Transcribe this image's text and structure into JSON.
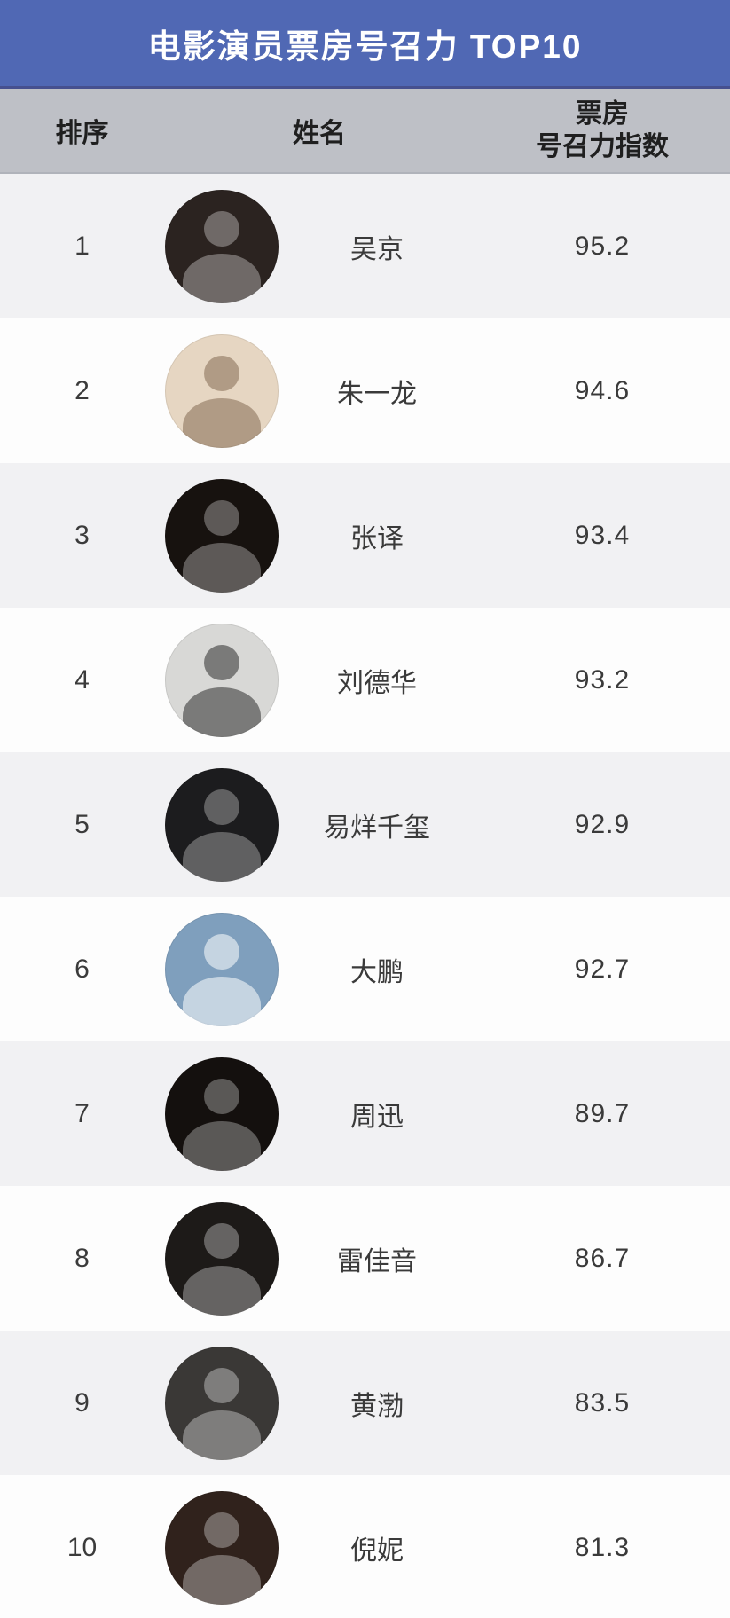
{
  "header": {
    "title": "电影演员票房号召力 TOP10"
  },
  "table": {
    "columns": {
      "rank": "排序",
      "name": "姓名",
      "index_line1": "票房",
      "index_line2": "号召力指数"
    },
    "rows": [
      {
        "rank": "1",
        "name": "吴京",
        "value": "95.2",
        "photo_bg": "#2b2320",
        "photo_fg": "rgba(255,255,255,0.32)"
      },
      {
        "rank": "2",
        "name": "朱一龙",
        "value": "94.6",
        "photo_bg": "#e6d6c2",
        "photo_fg": "rgba(110,85,60,0.45)"
      },
      {
        "rank": "3",
        "name": "张译",
        "value": "93.4",
        "photo_bg": "#17120f",
        "photo_fg": "rgba(255,255,255,0.30)"
      },
      {
        "rank": "4",
        "name": "刘德华",
        "value": "93.2",
        "photo_bg": "#d8d8d6",
        "photo_fg": "rgba(45,45,45,0.55)"
      },
      {
        "rank": "5",
        "name": "易烊千玺",
        "value": "92.9",
        "photo_bg": "#1c1c1e",
        "photo_fg": "rgba(255,255,255,0.30)"
      },
      {
        "rank": "6",
        "name": "大鹏",
        "value": "92.7",
        "photo_bg": "#7f9fbd",
        "photo_fg": "rgba(255,255,255,0.55)"
      },
      {
        "rank": "7",
        "name": "周迅",
        "value": "89.7",
        "photo_bg": "#14100e",
        "photo_fg": "rgba(255,255,255,0.30)"
      },
      {
        "rank": "8",
        "name": "雷佳音",
        "value": "86.7",
        "photo_bg": "#1d1a18",
        "photo_fg": "rgba(255,255,255,0.32)"
      },
      {
        "rank": "9",
        "name": "黄渤",
        "value": "83.5",
        "photo_bg": "#3a3836",
        "photo_fg": "rgba(255,255,255,0.35)"
      },
      {
        "rank": "10",
        "name": "倪妮",
        "value": "81.3",
        "photo_bg": "#30221c",
        "photo_fg": "rgba(255,255,255,0.32)"
      }
    ]
  },
  "colors": {
    "banner_bg": "#5068b4",
    "banner_text": "#ffffff",
    "header_row_bg": "#bec0c6",
    "header_row_text": "#1f1f1f",
    "row_bg": "#fdfdfd",
    "row_alt_bg": "#f1f1f3",
    "row_text": "#3a3a3a"
  },
  "chart_data": {
    "type": "table",
    "title": "电影演员票房号召力 TOP10",
    "columns": [
      "排序",
      "姓名",
      "票房号召力指数"
    ],
    "rows": [
      [
        1,
        "吴京",
        95.2
      ],
      [
        2,
        "朱一龙",
        94.6
      ],
      [
        3,
        "张译",
        93.4
      ],
      [
        4,
        "刘德华",
        93.2
      ],
      [
        5,
        "易烊千玺",
        92.9
      ],
      [
        6,
        "大鹏",
        92.7
      ],
      [
        7,
        "周迅",
        89.7
      ],
      [
        8,
        "雷佳音",
        86.7
      ],
      [
        9,
        "黄渤",
        83.5
      ],
      [
        10,
        "倪妮",
        81.3
      ]
    ]
  }
}
